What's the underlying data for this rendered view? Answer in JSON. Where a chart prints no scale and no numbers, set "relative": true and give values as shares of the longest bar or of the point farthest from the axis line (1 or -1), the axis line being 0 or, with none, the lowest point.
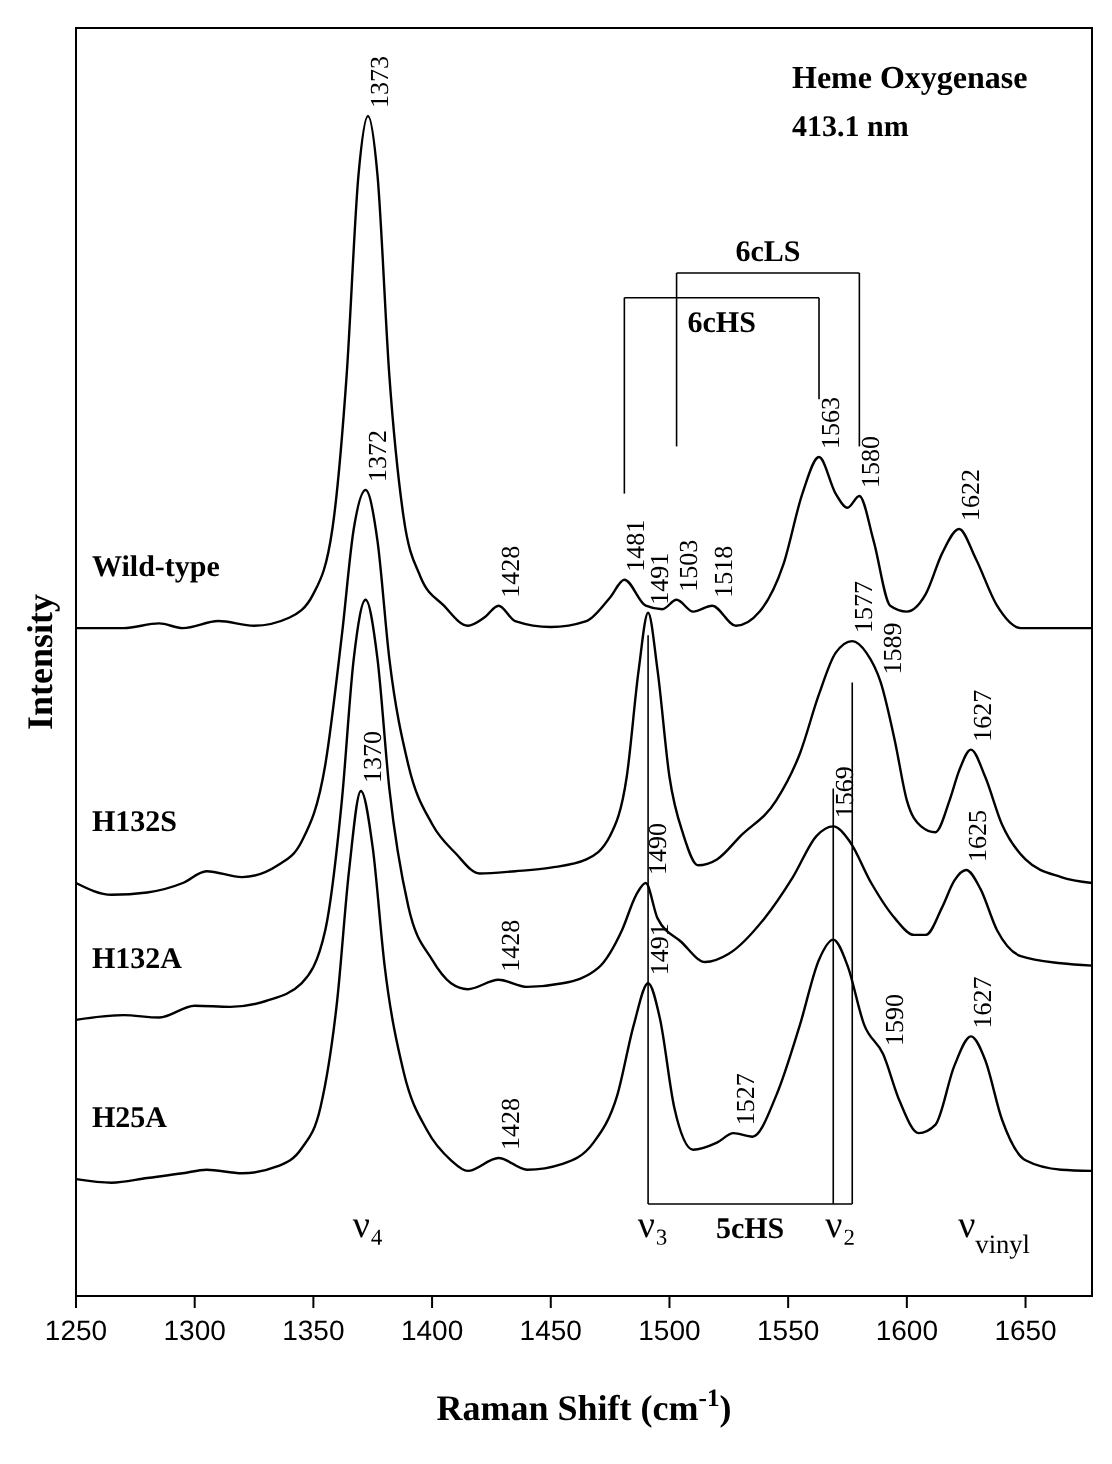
{
  "chart_data": {
    "type": "line",
    "title": "Heme Oxygenase",
    "subtitle": "413.1 nm",
    "xlabel": "Raman Shift (cm$^{-1}$)",
    "ylabel": "Intensity",
    "relative": true,
    "xlim": [
      1250,
      1678
    ],
    "xticks": [
      1250,
      1300,
      1350,
      1400,
      1450,
      1500,
      1550,
      1600,
      1650
    ],
    "tick_labels": "x",
    "grid": false,
    "marker": "none",
    "line_style": "solid",
    "series": [
      {
        "name": "Wild-type",
        "color": "#000000",
        "x": [
          1250,
          1270,
          1285,
          1295,
          1310,
          1325,
          1340,
          1350,
          1358,
          1364,
          1369,
          1373,
          1377,
          1382,
          1388,
          1395,
          1405,
          1415,
          1422,
          1428,
          1435,
          1450,
          1465,
          1475,
          1481,
          1490,
          1497,
          1503,
          1510,
          1518,
          1528,
          1538,
          1548,
          1556,
          1563,
          1570,
          1575,
          1580,
          1586,
          1593,
          1600,
          1608,
          1615,
          1622,
          1629,
          1638,
          1648,
          1665,
          1678
        ],
        "values": [
          0.566,
          0.566,
          0.57,
          0.566,
          0.572,
          0.568,
          0.575,
          0.595,
          0.65,
          0.78,
          0.95,
          1.0,
          0.95,
          0.78,
          0.66,
          0.61,
          0.585,
          0.568,
          0.575,
          0.585,
          0.572,
          0.567,
          0.572,
          0.592,
          0.607,
          0.585,
          0.582,
          0.59,
          0.58,
          0.585,
          0.568,
          0.58,
          0.62,
          0.68,
          0.711,
          0.68,
          0.668,
          0.678,
          0.64,
          0.585,
          0.58,
          0.595,
          0.63,
          0.65,
          0.625,
          0.585,
          0.566,
          0.566,
          0.566
        ]
      },
      {
        "name": "H132S",
        "color": "#000000",
        "x": [
          1250,
          1265,
          1280,
          1295,
          1305,
          1320,
          1335,
          1345,
          1355,
          1362,
          1367,
          1372,
          1377,
          1382,
          1390,
          1400,
          1410,
          1420,
          1435,
          1450,
          1465,
          1475,
          1482,
          1487,
          1491,
          1495,
          1500,
          1506,
          1512,
          1520,
          1530,
          1545,
          1555,
          1563,
          1570,
          1577,
          1583,
          1589,
          1595,
          1600,
          1606,
          1612,
          1618,
          1622,
          1627,
          1633,
          1640,
          1650,
          1665,
          1678
        ],
        "values": [
          0.35,
          0.34,
          0.342,
          0.35,
          0.36,
          0.355,
          0.365,
          0.385,
          0.45,
          0.56,
          0.65,
          0.683,
          0.64,
          0.54,
          0.45,
          0.4,
          0.375,
          0.358,
          0.36,
          0.363,
          0.37,
          0.39,
          0.44,
          0.53,
          0.579,
          0.53,
          0.44,
          0.39,
          0.365,
          0.37,
          0.39,
          0.42,
          0.46,
          0.51,
          0.545,
          0.555,
          0.545,
          0.52,
          0.47,
          0.42,
          0.398,
          0.393,
          0.42,
          0.445,
          0.463,
          0.44,
          0.4,
          0.37,
          0.355,
          0.35
        ]
      },
      {
        "name": "H132A",
        "color": "#000000",
        "x": [
          1250,
          1270,
          1285,
          1300,
          1315,
          1330,
          1345,
          1355,
          1362,
          1367,
          1372,
          1377,
          1382,
          1390,
          1400,
          1408,
          1415,
          1428,
          1440,
          1455,
          1470,
          1480,
          1486,
          1490,
          1495,
          1505,
          1515,
          1525,
          1540,
          1552,
          1562,
          1569,
          1576,
          1585,
          1595,
          1603,
          1608,
          1615,
          1620,
          1625,
          1631,
          1638,
          1648,
          1665,
          1678
        ],
        "values": [
          0.234,
          0.238,
          0.236,
          0.246,
          0.245,
          0.25,
          0.265,
          0.31,
          0.42,
          0.54,
          0.59,
          0.54,
          0.43,
          0.33,
          0.285,
          0.265,
          0.26,
          0.268,
          0.262,
          0.265,
          0.278,
          0.31,
          0.34,
          0.35,
          0.32,
          0.3,
          0.283,
          0.29,
          0.32,
          0.355,
          0.39,
          0.398,
          0.385,
          0.35,
          0.32,
          0.306,
          0.306,
          0.33,
          0.352,
          0.361,
          0.345,
          0.31,
          0.288,
          0.282,
          0.28
        ]
      },
      {
        "name": "H25A",
        "color": "#000000",
        "x": [
          1250,
          1265,
          1280,
          1295,
          1305,
          1320,
          1335,
          1345,
          1353,
          1360,
          1365,
          1370,
          1375,
          1380,
          1388,
          1398,
          1408,
          1415,
          1428,
          1440,
          1455,
          1468,
          1478,
          1485,
          1491,
          1496,
          1502,
          1510,
          1520,
          1527,
          1535,
          1545,
          1555,
          1563,
          1569,
          1575,
          1582,
          1590,
          1597,
          1605,
          1612,
          1620,
          1627,
          1633,
          1640,
          1650,
          1665,
          1678
        ],
        "values": [
          0.099,
          0.096,
          0.1,
          0.104,
          0.107,
          0.104,
          0.11,
          0.125,
          0.16,
          0.25,
          0.36,
          0.428,
          0.38,
          0.28,
          0.19,
          0.14,
          0.115,
          0.106,
          0.117,
          0.107,
          0.112,
          0.13,
          0.17,
          0.23,
          0.265,
          0.235,
          0.16,
          0.124,
          0.13,
          0.138,
          0.135,
          0.17,
          0.23,
          0.285,
          0.302,
          0.28,
          0.23,
          0.205,
          0.165,
          0.138,
          0.145,
          0.195,
          0.22,
          0.2,
          0.15,
          0.115,
          0.107,
          0.106
        ]
      }
    ],
    "annotations": [
      {
        "text": "1373",
        "x": 1373,
        "y": 1.0
      },
      {
        "text": "1428",
        "x": 1428,
        "y": 0.585
      },
      {
        "text": "1481",
        "x": 1481,
        "y": 0.607
      },
      {
        "text": "1503",
        "x": 1503,
        "y": 0.59
      },
      {
        "text": "1518",
        "x": 1518,
        "y": 0.585
      },
      {
        "text": "1563",
        "x": 1563,
        "y": 0.711
      },
      {
        "text": "1580",
        "x": 1580,
        "y": 0.678
      },
      {
        "text": "1622",
        "x": 1622,
        "y": 0.65
      },
      {
        "text": "1372",
        "x": 1372,
        "y": 0.683
      },
      {
        "text": "1491",
        "x": 1491,
        "y": 0.579
      },
      {
        "text": "1577",
        "x": 1577,
        "y": 0.555
      },
      {
        "text": "1589",
        "x": 1589,
        "y": 0.52
      },
      {
        "text": "1627",
        "x": 1627,
        "y": 0.463
      },
      {
        "text": "1370",
        "x": 1370,
        "y": 0.428
      },
      {
        "text": "1490",
        "x": 1490,
        "y": 0.35
      },
      {
        "text": "1428",
        "x": 1428,
        "y": 0.268
      },
      {
        "text": "1569",
        "x": 1569,
        "y": 0.398
      },
      {
        "text": "1625",
        "x": 1625,
        "y": 0.361
      },
      {
        "text": "1491",
        "x": 1491,
        "y": 0.265
      },
      {
        "text": "1527",
        "x": 1527,
        "y": 0.138
      },
      {
        "text": "1590",
        "x": 1590,
        "y": 0.205
      },
      {
        "text": "1627",
        "x": 1627,
        "y": 0.22
      },
      {
        "text": "1428",
        "x": 1428,
        "y": 0.117
      },
      "6cLS",
      "6cHS",
      "5cHS",
      "ν₄",
      "ν₃",
      "ν₂",
      "ν$_{vinyl}$"
    ]
  }
}
